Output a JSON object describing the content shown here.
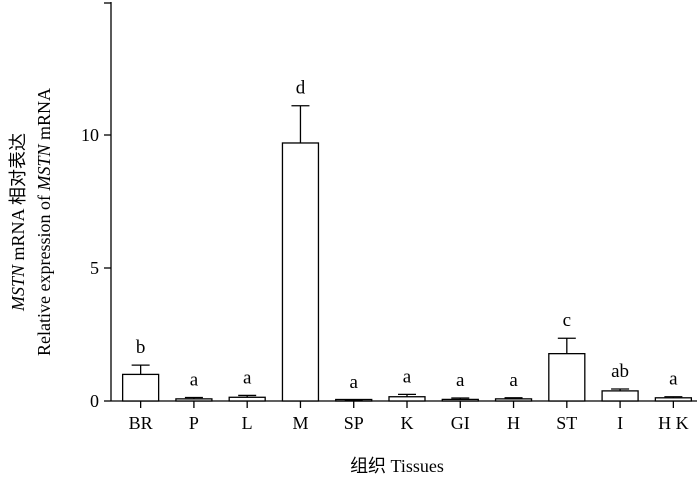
{
  "chart_data": {
    "type": "bar",
    "xlabel": "组织 Tissues",
    "ylabel": {
      "line1_italic": "MSTN",
      "line1_rest": " mRNA 相对表达",
      "line2_prefix": "Relative expression of ",
      "line2_italic": "MSTN",
      "line2_suffix": " mRNA"
    },
    "ylim": [
      0,
      15
    ],
    "yticks": [
      "0",
      "5",
      "10"
    ],
    "ytick_values": [
      0,
      5,
      10
    ],
    "categories": [
      "BR",
      "P",
      "L",
      "M",
      "SP",
      "K",
      "GI",
      "H",
      "ST",
      "I",
      "H K"
    ],
    "values": [
      1.0,
      0.08,
      0.14,
      9.7,
      0.02,
      0.16,
      0.06,
      0.08,
      1.78,
      0.38,
      0.12
    ],
    "errors": [
      0.35,
      0.05,
      0.07,
      1.4,
      0.02,
      0.09,
      0.05,
      0.04,
      0.58,
      0.07,
      0.04
    ],
    "significance": [
      "b",
      "a",
      "a",
      "d",
      "a",
      "a",
      "a",
      "a",
      "c",
      "ab",
      "a"
    ],
    "grid": false,
    "legend": "none"
  }
}
